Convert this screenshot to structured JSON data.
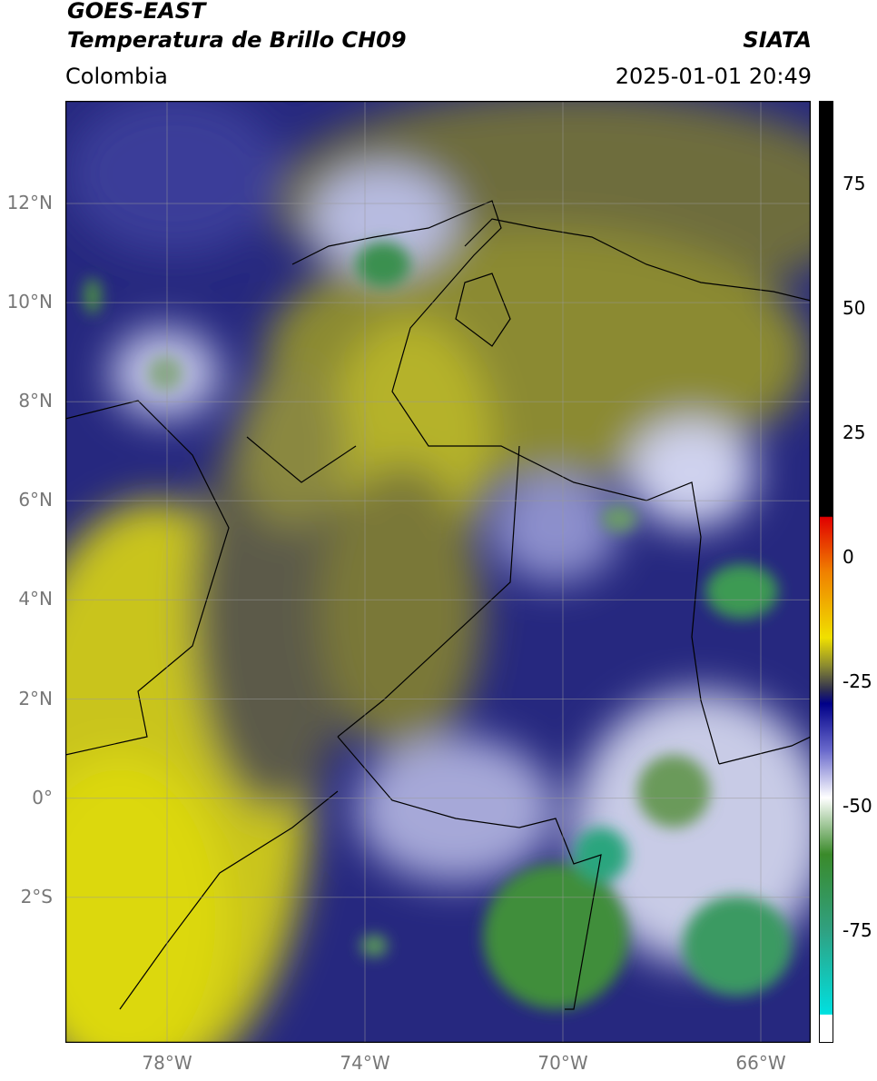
{
  "header": {
    "title": "GOES-EAST",
    "subtitle": "Temperatura de Brillo CH09",
    "region": "Colombia",
    "source": "SIATA",
    "datetime": "2025-01-01 20:49"
  },
  "map": {
    "lat_ticks": [
      "12°N",
      "10°N",
      "8°N",
      "6°N",
      "4°N",
      "2°N",
      "0°",
      "2°S"
    ],
    "lon_ticks": [
      "78°W",
      "74°W",
      "70°W",
      "66°W"
    ]
  },
  "colorbar": {
    "ticks": [
      "75",
      "50",
      "25",
      "0",
      "-25",
      "-50",
      "-75"
    ]
  }
}
